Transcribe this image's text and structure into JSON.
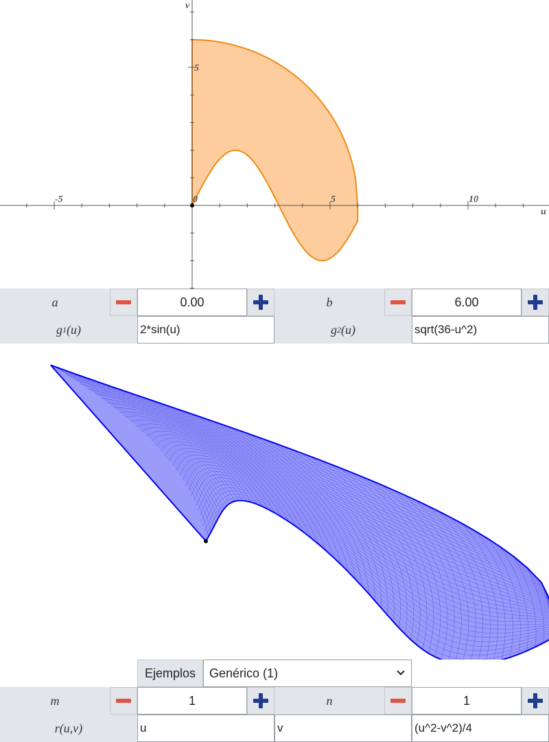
{
  "plot2d": {
    "axis_labels": {
      "u": "u",
      "v": "v"
    },
    "x_ticks": [
      {
        "value": -5,
        "label": "-5"
      },
      {
        "value": 0,
        "label": "0"
      },
      {
        "value": 5,
        "label": "5"
      },
      {
        "value": 10,
        "label": "10"
      }
    ],
    "y_ticks": [
      {
        "value": 5,
        "label": "5"
      }
    ],
    "colors": {
      "region_fill": "#fdcd9e",
      "region_stroke": "#f28a16",
      "axis": "#555555"
    }
  },
  "surface": {
    "colors": {
      "fill": "#9b9bfa",
      "mesh": "#4a4ae8",
      "stroke": "#0000ee"
    }
  },
  "controls": {
    "a": {
      "label": "a",
      "value": "0.00"
    },
    "b": {
      "label": "b",
      "value": "6.00"
    },
    "g1": {
      "label": "g",
      "sub": "1",
      "arg": "(u)",
      "value": "2*sin(u)"
    },
    "g2": {
      "label": "g",
      "sub": "2",
      "arg": "(u)",
      "value": "sqrt(36-u^2)"
    },
    "examples": {
      "label": "Ejemplos",
      "selected": "Genérico (1)"
    },
    "m": {
      "label": "m",
      "value": "1"
    },
    "n": {
      "label": "n",
      "value": "1"
    },
    "r": {
      "label": "r(u,v)",
      "x": "u",
      "y": "v",
      "z": "(u^2-v^2)/4"
    }
  }
}
